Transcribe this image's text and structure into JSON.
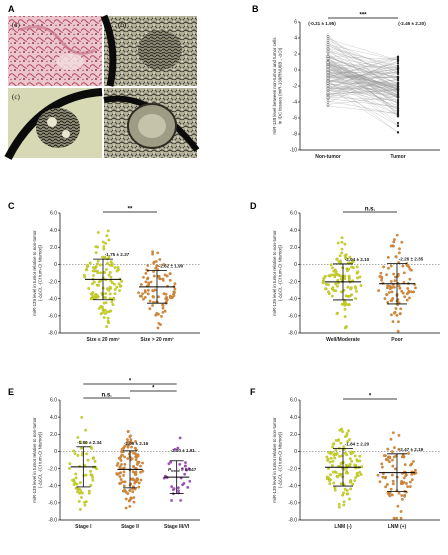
{
  "figure": {
    "panels": {
      "A": {
        "label": "A",
        "images": [
          {
            "label": "(a)",
            "kind": "HE-stained tissue section (pink)"
          },
          {
            "label": "(b)",
            "kind": "ISH tissue section"
          },
          {
            "label": "(c)",
            "kind": "ISH tissue section"
          },
          {
            "label": "",
            "kind": "ISH tissue section"
          }
        ]
      }
    }
  },
  "chart_data": [
    {
      "panel": "B",
      "type": "paired-line",
      "ylabel_lines": [
        "miR-139 level between non-tumor and tumor cells",
        "in IDC tissues (miR-139/RNU6B , -ΔCt)"
      ],
      "ylim": [
        -10,
        6
      ],
      "yticks": [
        "6",
        "4",
        "2",
        "0",
        "-2",
        "-4",
        "-6",
        "-8",
        "-10"
      ],
      "categories": [
        "Non-tumor",
        "Tumor"
      ],
      "annotations": [
        "(-0.21 ± 1.95)",
        "(-2.46 ± 2.20)"
      ],
      "significance": "***",
      "series": [
        {
          "name": "Non-tumor",
          "mean": -0.21,
          "sd": 1.95,
          "range": [
            -4.5,
            4.2
          ]
        },
        {
          "name": "Tumor",
          "mean": -2.46,
          "sd": 2.2,
          "range": [
            -7.8,
            2.8
          ]
        }
      ]
    },
    {
      "panel": "C",
      "type": "scatter",
      "ylabel_lines": [
        "miR-139 level in tumor relative to non-tumor",
        "(-ΔΔCt, -(Ct tum-Ct Ntumor))"
      ],
      "ylim": [
        -8,
        6
      ],
      "yticks": [
        "6.0",
        "4.0",
        "2.0",
        "0",
        "-2.0",
        "-4.0",
        "-6.0",
        "-8.0"
      ],
      "categories": [
        "Size ≤ 20 mm³",
        "Size > 20 mm³"
      ],
      "colors": [
        "#c9d422",
        "#d68a3a"
      ],
      "annotations": [
        "-1.75 ± 2.37",
        "-2.62 ± 1.90"
      ],
      "significance": "**",
      "series": [
        {
          "name": "Size ≤ 20 mm³",
          "mean": -1.75,
          "sd": 2.37,
          "n": 125
        },
        {
          "name": "Size > 20 mm³",
          "mean": -2.62,
          "sd": 1.9,
          "n": 95
        }
      ]
    },
    {
      "panel": "D",
      "type": "scatter",
      "ylabel_lines": [
        "miR-139 level in tumor relative to non-tumor",
        "(-ΔΔCt, -(Ct tum-Ct Ntumor))"
      ],
      "ylim": [
        -8,
        6
      ],
      "yticks": [
        "6.0",
        "4.0",
        "2.0",
        "0",
        "-2.0",
        "-4.0",
        "-6.0",
        "-8.0"
      ],
      "categories": [
        "Well/Moderate",
        "Poor"
      ],
      "colors": [
        "#c9d422",
        "#d68a3a"
      ],
      "annotations": [
        "-2.04 ± 2.10",
        "-2.26 ± 2.35"
      ],
      "significance": "n.s.",
      "series": [
        {
          "name": "Well/Moderate",
          "mean": -2.04,
          "sd": 2.1,
          "n": 115
        },
        {
          "name": "Poor",
          "mean": -2.26,
          "sd": 2.35,
          "n": 90
        }
      ]
    },
    {
      "panel": "E",
      "type": "scatter",
      "ylabel_lines": [
        "miR-139 level in tumor relative to non-tumor",
        "(-ΔΔCt, -(Ct tum-Ct Ntumor))"
      ],
      "ylim": [
        -8,
        6
      ],
      "yticks": [
        "6.0",
        "4.0",
        "2.0",
        "0",
        "-2.0",
        "-4.0",
        "-6.0",
        "-8.0"
      ],
      "categories": [
        "Stage I",
        "Stage II",
        "Stage III/VI"
      ],
      "colors": [
        "#c9d422",
        "#d68a3a",
        "#a64fc0"
      ],
      "annotations": [
        "-1.80 ± 2.34",
        "-2.09 ± 2.16",
        "-3.00 ± 1.91"
      ],
      "significance": [
        "n.s.",
        "*",
        "*"
      ],
      "trend_label": "P",
      "trend_sub": "trend",
      "trend_value": "= 0.047",
      "series": [
        {
          "name": "Stage I",
          "mean": -1.8,
          "sd": 2.34,
          "n": 60
        },
        {
          "name": "Stage II",
          "mean": -2.09,
          "sd": 2.16,
          "n": 120
        },
        {
          "name": "Stage III/VI",
          "mean": -3.0,
          "sd": 1.91,
          "n": 30
        }
      ]
    },
    {
      "panel": "F",
      "type": "scatter",
      "ylabel_lines": [
        "miR-139 level in tumor relative to non-tumor",
        "(-ΔΔCt, -(Ct tum-Ct Ntumor))"
      ],
      "ylim": [
        -8,
        6
      ],
      "yticks": [
        "6.0",
        "4.0",
        "2.0",
        "0",
        "-2.0",
        "-4.0",
        "-6.0",
        "-8.0"
      ],
      "categories": [
        "LNM (-)",
        "LNM (+)"
      ],
      "colors": [
        "#c9d422",
        "#d68a3a"
      ],
      "annotations": [
        "-1.84 ± 2.20",
        "-2.47 ± 2.19"
      ],
      "significance": "*",
      "series": [
        {
          "name": "LNM (-)",
          "mean": -1.84,
          "sd": 2.2,
          "n": 120
        },
        {
          "name": "LNM (+)",
          "mean": -2.47,
          "sd": 2.19,
          "n": 85
        }
      ]
    }
  ]
}
